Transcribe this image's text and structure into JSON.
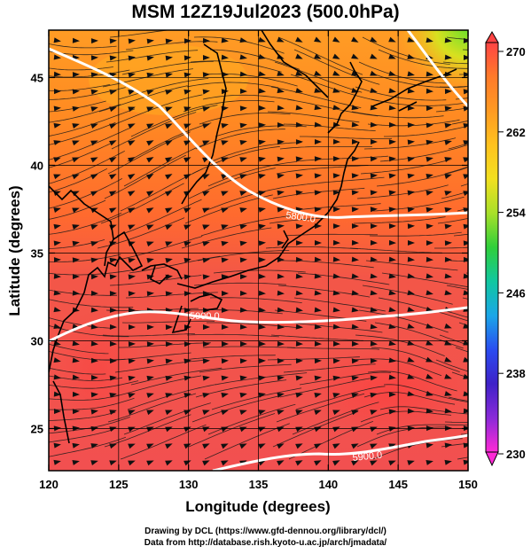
{
  "title": "MSM 12Z19Jul2023 (500.0hPa)",
  "xlabel": "Longitude (degrees)",
  "ylabel": "Latitude  (degrees)",
  "xticks": [
    "120",
    "125",
    "130",
    "135",
    "140",
    "145",
    "150"
  ],
  "yticks": [
    "25",
    "30",
    "35",
    "40",
    "45"
  ],
  "colorbar": {
    "ticks": [
      "270",
      "262",
      "254",
      "246",
      "238",
      "230"
    ],
    "colors": [
      "#ff4444",
      "#ff7a2a",
      "#ff9a22",
      "#ffc21e",
      "#f2e020",
      "#a8e02a",
      "#2fcf3a",
      "#11c7a0",
      "#1aa6e8",
      "#2a4cf0",
      "#3e22c8",
      "#8a2ad8",
      "#ff2ad6"
    ]
  },
  "contours": [
    "5800.0",
    "5900.0",
    "5900.0"
  ],
  "credits": [
    "Drawing by DCL (https://www.gfd-dennou.org/library/dcl/)",
    "Data from http://database.rish.kyoto-u.ac.jp/arch/jmadata/"
  ],
  "colors": {
    "south": "#f05454",
    "north": "#ff9a22",
    "corner": "#7ee02a",
    "contour": "#ffffff",
    "coast": "#000000"
  }
}
